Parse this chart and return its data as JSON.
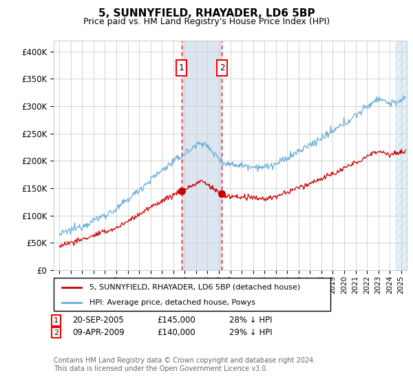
{
  "title": "5, SUNNYFIELD, RHAYADER, LD6 5BP",
  "subtitle": "Price paid vs. HM Land Registry's House Price Index (HPI)",
  "legend_entry1": "5, SUNNYFIELD, RHAYADER, LD6 5BP (detached house)",
  "legend_entry2": "HPI: Average price, detached house, Powys",
  "transaction1_date": "20-SEP-2005",
  "transaction1_price": 145000,
  "transaction1_label": "28% ↓ HPI",
  "transaction2_date": "09-APR-2009",
  "transaction2_price": 140000,
  "transaction2_label": "29% ↓ HPI",
  "footer": "Contains HM Land Registry data © Crown copyright and database right 2024.\nThis data is licensed under the Open Government Licence v3.0.",
  "ylim": [
    0,
    420000
  ],
  "yticks": [
    0,
    50000,
    100000,
    150000,
    200000,
    250000,
    300000,
    350000,
    400000
  ],
  "ytick_labels": [
    "£0",
    "£50K",
    "£100K",
    "£150K",
    "£200K",
    "£250K",
    "£300K",
    "£350K",
    "£400K"
  ],
  "hpi_color": "#6baed6",
  "price_color": "#cc0000",
  "shading_color": "#dce6f1",
  "transaction1_x": 2005.72,
  "transaction2_x": 2009.27,
  "hatch_start": 2024.5,
  "xmin": 1994.5,
  "xmax": 2025.5
}
